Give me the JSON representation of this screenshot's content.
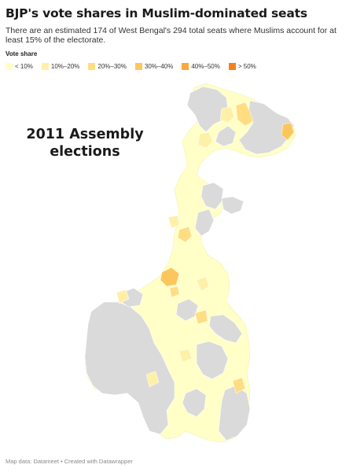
{
  "header": {
    "title": "BJP's vote shares in Muslim-dominated seats",
    "subtitle": "There are an estimated 174 of West Bengal's 294 total seats where Muslims account for at least 15% of the electorate."
  },
  "legend": {
    "title": "Vote share",
    "items": [
      {
        "label": "< 10%",
        "color": "#ffffc7"
      },
      {
        "label": "10%–20%",
        "color": "#fff0a8"
      },
      {
        "label": "20%–30%",
        "color": "#fedd83"
      },
      {
        "label": "30%–40%",
        "color": "#fdc65d"
      },
      {
        "label": "40%–50%",
        "color": "#fca83c"
      },
      {
        "label": "> 50%",
        "color": "#f7801a"
      }
    ]
  },
  "map": {
    "annotation_line1": "2011 Assembly",
    "annotation_line2": "elections",
    "no_data_color": "#dadada"
  },
  "footer": {
    "credit": "Map data: Datameet • Created with Datawrapper"
  }
}
